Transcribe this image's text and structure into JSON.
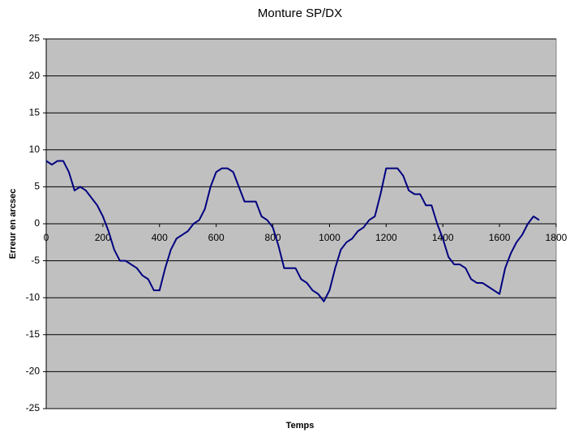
{
  "chart_data": {
    "type": "line",
    "title": "Monture SP/DX",
    "x_label": "Temps",
    "y_label": "Erreur en arcsec",
    "x": [
      0,
      20,
      40,
      60,
      80,
      100,
      120,
      140,
      160,
      180,
      200,
      220,
      240,
      260,
      280,
      300,
      320,
      340,
      360,
      380,
      400,
      420,
      440,
      460,
      480,
      500,
      520,
      540,
      560,
      580,
      600,
      620,
      640,
      660,
      680,
      700,
      720,
      740,
      760,
      780,
      800,
      820,
      840,
      860,
      880,
      900,
      920,
      940,
      960,
      980,
      1000,
      1020,
      1040,
      1060,
      1080,
      1100,
      1120,
      1140,
      1160,
      1180,
      1200,
      1220,
      1240,
      1260,
      1280,
      1300,
      1320,
      1340,
      1360,
      1380,
      1400,
      1420,
      1440,
      1460,
      1480,
      1500,
      1520,
      1540,
      1560,
      1580,
      1600,
      1620,
      1640,
      1660,
      1680,
      1700,
      1720,
      1740
    ],
    "values": [
      8.5,
      8,
      8.5,
      8.5,
      7,
      4.5,
      5,
      4.5,
      3.5,
      2.5,
      1,
      -1,
      -3.5,
      -5,
      -5,
      -5.5,
      -6,
      -7,
      -7.5,
      -9,
      -9,
      -6,
      -3.5,
      -2,
      -1.5,
      -1,
      0,
      0.5,
      2,
      5,
      7,
      7.5,
      7.5,
      7,
      5,
      3,
      3,
      3,
      1,
      0.5,
      -0.5,
      -3,
      -6,
      -6,
      -6,
      -7.5,
      -8,
      -9,
      -9.5,
      -10.5,
      -9,
      -6,
      -3.5,
      -2.5,
      -2,
      -1,
      -0.5,
      0.5,
      1,
      4,
      7.5,
      7.5,
      7.5,
      6.5,
      4.5,
      4,
      4,
      2.5,
      2.5,
      0,
      -2,
      -4.5,
      -5.5,
      -5.5,
      -6,
      -7.5,
      -8,
      -8,
      -8.5,
      -9,
      -9.5,
      -6,
      -4,
      -2.5,
      -1.5,
      0,
      1,
      0.5
    ],
    "color": "#000080",
    "plot_background": "#c0c0c0",
    "xlim": [
      0,
      1800
    ],
    "xticks": [
      0,
      200,
      400,
      600,
      800,
      1000,
      1200,
      1400,
      1600,
      1800
    ],
    "ylim": [
      -25,
      25
    ],
    "yticks": [
      -25,
      -20,
      -15,
      -10,
      -5,
      0,
      5,
      10,
      15,
      20,
      25
    ],
    "grid": true
  }
}
